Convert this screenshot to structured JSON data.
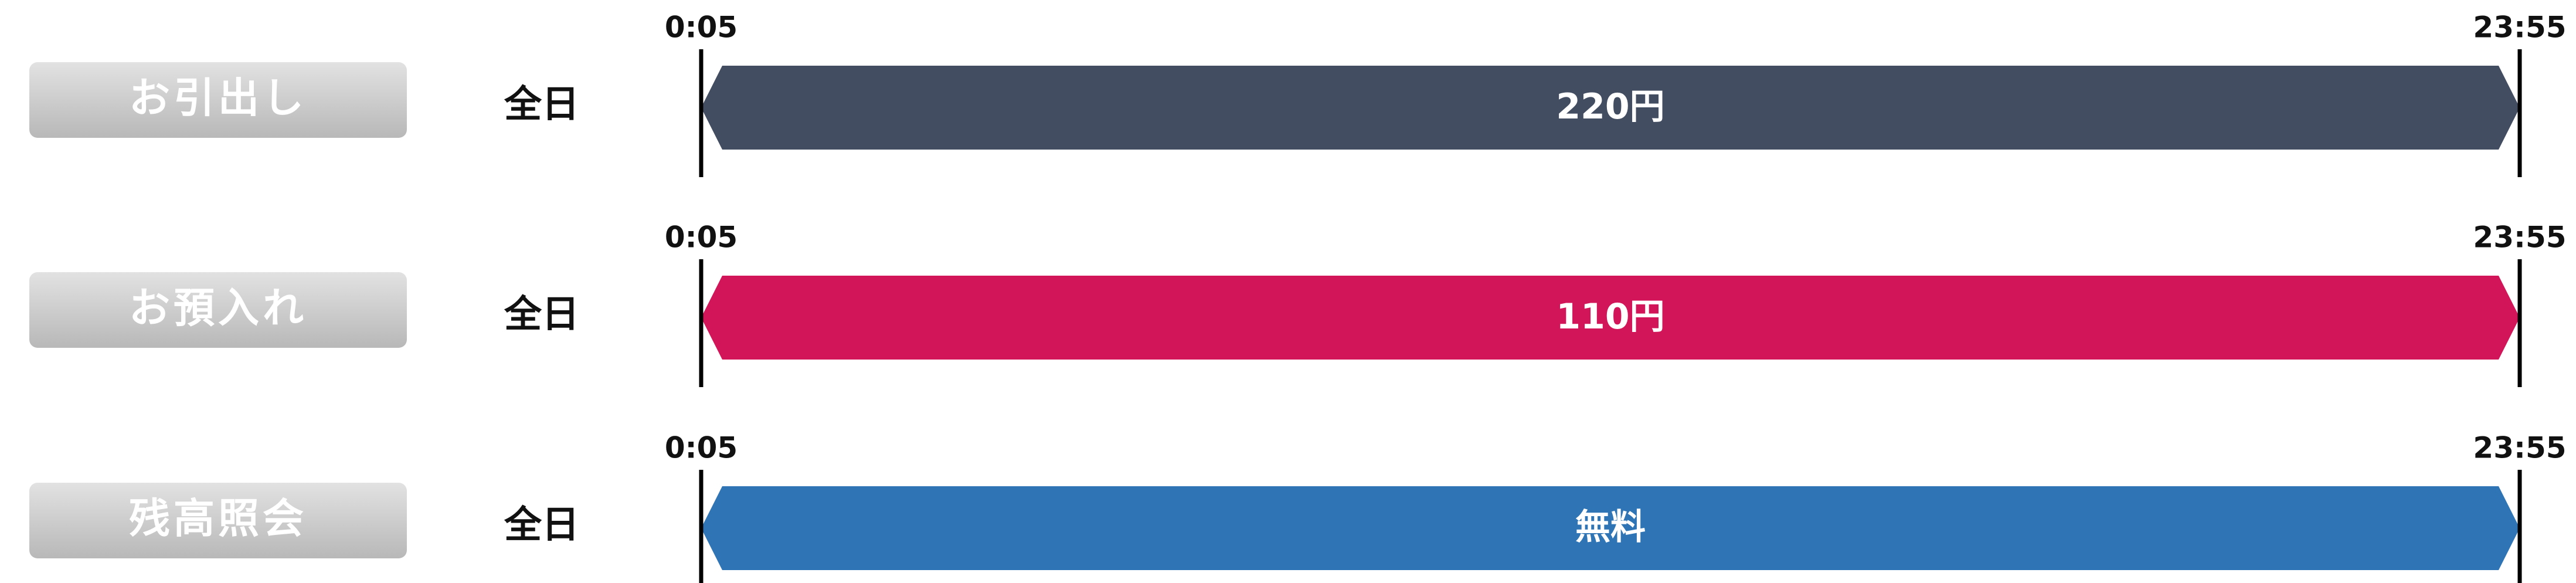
{
  "rows": [
    {
      "label": "お引出し",
      "period": "全日",
      "start": "0:05",
      "end": "23:55",
      "fee": "220円"
    },
    {
      "label": "お預入れ",
      "period": "全日",
      "start": "0:05",
      "end": "23:55",
      "fee": "110円"
    },
    {
      "label": "残高照会",
      "period": "全日",
      "start": "0:05",
      "end": "23:55",
      "fee": "無料"
    }
  ]
}
